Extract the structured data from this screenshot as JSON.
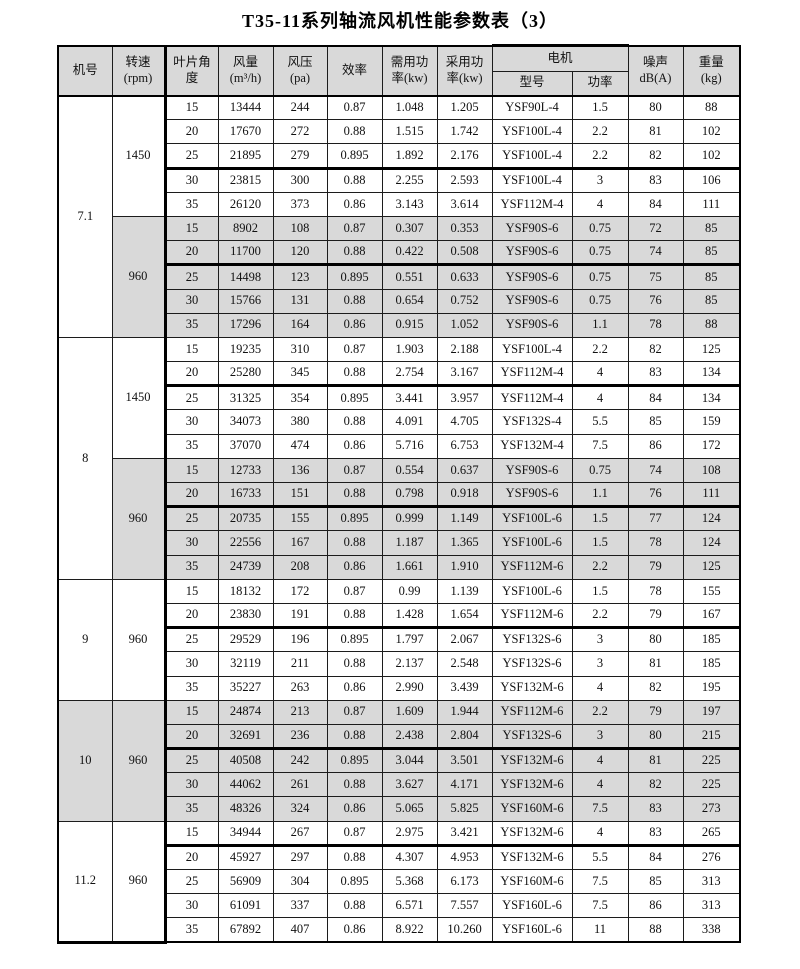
{
  "title": "T35-11系列轴流风机性能参数表（3）",
  "colors": {
    "shaded_bg": "#d9d9d9",
    "header_bg": "#d9d9d9",
    "border": "#000000",
    "page_bg": "#ffffff"
  },
  "table": {
    "headers": {
      "jihao": "机号",
      "speed": "转速\n(rpm)",
      "angle": "叶片角\n度",
      "flow": "风量\n(m³/h)",
      "pressure": "风压\n(pa)",
      "efficiency": "效率",
      "required_power": "需用功\n率(kw)",
      "adopted_power": "采用功\n率(kw)",
      "motor": "电机",
      "motor_model": "型号",
      "motor_power": "功率",
      "noise": "噪声\ndB(A)",
      "weight": "重量\n(kg)"
    },
    "jihao_groups": [
      {
        "label": "7.1",
        "start": 1,
        "span": 10,
        "shaded": false
      },
      {
        "label": "8",
        "start": 11,
        "span": 10,
        "shaded": false
      },
      {
        "label": "9",
        "start": 21,
        "span": 5,
        "shaded": false
      },
      {
        "label": "10",
        "start": 26,
        "span": 5,
        "shaded": true
      },
      {
        "label": "11.2",
        "start": 31,
        "span": 5,
        "shaded": false
      }
    ],
    "speed_groups": [
      {
        "label": "1450",
        "start": 1,
        "span": 5,
        "shaded": false
      },
      {
        "label": "960",
        "start": 6,
        "span": 5,
        "shaded": true
      },
      {
        "label": "1450",
        "start": 11,
        "span": 5,
        "shaded": false
      },
      {
        "label": "960",
        "start": 16,
        "span": 5,
        "shaded": true
      },
      {
        "label": "960",
        "start": 21,
        "span": 5,
        "shaded": false
      },
      {
        "label": "960",
        "start": 26,
        "span": 5,
        "shaded": true
      },
      {
        "label": "960",
        "start": 31,
        "span": 5,
        "shaded": false
      }
    ],
    "rows": [
      {
        "cells": [
          "15",
          "13444",
          "244",
          "0.87",
          "1.048",
          "1.205",
          "YSF90L-4",
          "1.5",
          "80",
          "88"
        ],
        "shaded": false,
        "thick_bottom": false
      },
      {
        "cells": [
          "20",
          "17670",
          "272",
          "0.88",
          "1.515",
          "1.742",
          "YSF100L-4",
          "2.2",
          "81",
          "102"
        ],
        "shaded": false,
        "thick_bottom": false
      },
      {
        "cells": [
          "25",
          "21895",
          "279",
          "0.895",
          "1.892",
          "2.176",
          "YSF100L-4",
          "2.2",
          "82",
          "102"
        ],
        "shaded": false,
        "thick_bottom": true
      },
      {
        "cells": [
          "30",
          "23815",
          "300",
          "0.88",
          "2.255",
          "2.593",
          "YSF100L-4",
          "3",
          "83",
          "106"
        ],
        "shaded": false,
        "thick_bottom": false
      },
      {
        "cells": [
          "35",
          "26120",
          "373",
          "0.86",
          "3.143",
          "3.614",
          "YSF112M-4",
          "4",
          "84",
          "111"
        ],
        "shaded": false,
        "thick_bottom": false
      },
      {
        "cells": [
          "15",
          "8902",
          "108",
          "0.87",
          "0.307",
          "0.353",
          "YSF90S-6",
          "0.75",
          "72",
          "85"
        ],
        "shaded": true,
        "thick_bottom": false
      },
      {
        "cells": [
          "20",
          "11700",
          "120",
          "0.88",
          "0.422",
          "0.508",
          "YSF90S-6",
          "0.75",
          "74",
          "85"
        ],
        "shaded": true,
        "thick_bottom": true
      },
      {
        "cells": [
          "25",
          "14498",
          "123",
          "0.895",
          "0.551",
          "0.633",
          "YSF90S-6",
          "0.75",
          "75",
          "85"
        ],
        "shaded": true,
        "thick_bottom": false
      },
      {
        "cells": [
          "30",
          "15766",
          "131",
          "0.88",
          "0.654",
          "0.752",
          "YSF90S-6",
          "0.75",
          "76",
          "85"
        ],
        "shaded": true,
        "thick_bottom": false
      },
      {
        "cells": [
          "35",
          "17296",
          "164",
          "0.86",
          "0.915",
          "1.052",
          "YSF90S-6",
          "1.1",
          "78",
          "88"
        ],
        "shaded": true,
        "thick_bottom": false
      },
      {
        "cells": [
          "15",
          "19235",
          "310",
          "0.87",
          "1.903",
          "2.188",
          "YSF100L-4",
          "2.2",
          "82",
          "125"
        ],
        "shaded": false,
        "thick_bottom": false
      },
      {
        "cells": [
          "20",
          "25280",
          "345",
          "0.88",
          "2.754",
          "3.167",
          "YSF112M-4",
          "4",
          "83",
          "134"
        ],
        "shaded": false,
        "thick_bottom": true
      },
      {
        "cells": [
          "25",
          "31325",
          "354",
          "0.895",
          "3.441",
          "3.957",
          "YSF112M-4",
          "4",
          "84",
          "134"
        ],
        "shaded": false,
        "thick_bottom": false
      },
      {
        "cells": [
          "30",
          "34073",
          "380",
          "0.88",
          "4.091",
          "4.705",
          "YSF132S-4",
          "5.5",
          "85",
          "159"
        ],
        "shaded": false,
        "thick_bottom": false
      },
      {
        "cells": [
          "35",
          "37070",
          "474",
          "0.86",
          "5.716",
          "6.753",
          "YSF132M-4",
          "7.5",
          "86",
          "172"
        ],
        "shaded": false,
        "thick_bottom": false
      },
      {
        "cells": [
          "15",
          "12733",
          "136",
          "0.87",
          "0.554",
          "0.637",
          "YSF90S-6",
          "0.75",
          "74",
          "108"
        ],
        "shaded": true,
        "thick_bottom": false
      },
      {
        "cells": [
          "20",
          "16733",
          "151",
          "0.88",
          "0.798",
          "0.918",
          "YSF90S-6",
          "1.1",
          "76",
          "111"
        ],
        "shaded": true,
        "thick_bottom": true
      },
      {
        "cells": [
          "25",
          "20735",
          "155",
          "0.895",
          "0.999",
          "1.149",
          "YSF100L-6",
          "1.5",
          "77",
          "124"
        ],
        "shaded": true,
        "thick_bottom": false
      },
      {
        "cells": [
          "30",
          "22556",
          "167",
          "0.88",
          "1.187",
          "1.365",
          "YSF100L-6",
          "1.5",
          "78",
          "124"
        ],
        "shaded": true,
        "thick_bottom": false
      },
      {
        "cells": [
          "35",
          "24739",
          "208",
          "0.86",
          "1.661",
          "1.910",
          "YSF112M-6",
          "2.2",
          "79",
          "125"
        ],
        "shaded": true,
        "thick_bottom": false
      },
      {
        "cells": [
          "15",
          "18132",
          "172",
          "0.87",
          "0.99",
          "1.139",
          "YSF100L-6",
          "1.5",
          "78",
          "155"
        ],
        "shaded": false,
        "thick_bottom": false
      },
      {
        "cells": [
          "20",
          "23830",
          "191",
          "0.88",
          "1.428",
          "1.654",
          "YSF112M-6",
          "2.2",
          "79",
          "167"
        ],
        "shaded": false,
        "thick_bottom": true
      },
      {
        "cells": [
          "25",
          "29529",
          "196",
          "0.895",
          "1.797",
          "2.067",
          "YSF132S-6",
          "3",
          "80",
          "185"
        ],
        "shaded": false,
        "thick_bottom": false
      },
      {
        "cells": [
          "30",
          "32119",
          "211",
          "0.88",
          "2.137",
          "2.548",
          "YSF132S-6",
          "3",
          "81",
          "185"
        ],
        "shaded": false,
        "thick_bottom": false
      },
      {
        "cells": [
          "35",
          "35227",
          "263",
          "0.86",
          "2.990",
          "3.439",
          "YSF132M-6",
          "4",
          "82",
          "195"
        ],
        "shaded": false,
        "thick_bottom": false
      },
      {
        "cells": [
          "15",
          "24874",
          "213",
          "0.87",
          "1.609",
          "1.944",
          "YSF112M-6",
          "2.2",
          "79",
          "197"
        ],
        "shaded": true,
        "thick_bottom": false
      },
      {
        "cells": [
          "20",
          "32691",
          "236",
          "0.88",
          "2.438",
          "2.804",
          "YSF132S-6",
          "3",
          "80",
          "215"
        ],
        "shaded": true,
        "thick_bottom": true
      },
      {
        "cells": [
          "25",
          "40508",
          "242",
          "0.895",
          "3.044",
          "3.501",
          "YSF132M-6",
          "4",
          "81",
          "225"
        ],
        "shaded": true,
        "thick_bottom": false
      },
      {
        "cells": [
          "30",
          "44062",
          "261",
          "0.88",
          "3.627",
          "4.171",
          "YSF132M-6",
          "4",
          "82",
          "225"
        ],
        "shaded": true,
        "thick_bottom": false
      },
      {
        "cells": [
          "35",
          "48326",
          "324",
          "0.86",
          "5.065",
          "5.825",
          "YSF160M-6",
          "7.5",
          "83",
          "273"
        ],
        "shaded": true,
        "thick_bottom": false
      },
      {
        "cells": [
          "15",
          "34944",
          "267",
          "0.87",
          "2.975",
          "3.421",
          "YSF132M-6",
          "4",
          "83",
          "265"
        ],
        "shaded": false,
        "thick_bottom": true
      },
      {
        "cells": [
          "20",
          "45927",
          "297",
          "0.88",
          "4.307",
          "4.953",
          "YSF132M-6",
          "5.5",
          "84",
          "276"
        ],
        "shaded": false,
        "thick_bottom": false
      },
      {
        "cells": [
          "25",
          "56909",
          "304",
          "0.895",
          "5.368",
          "6.173",
          "YSF160M-6",
          "7.5",
          "85",
          "313"
        ],
        "shaded": false,
        "thick_bottom": false
      },
      {
        "cells": [
          "30",
          "61091",
          "337",
          "0.88",
          "6.571",
          "7.557",
          "YSF160L-6",
          "7.5",
          "86",
          "313"
        ],
        "shaded": false,
        "thick_bottom": false
      },
      {
        "cells": [
          "35",
          "67892",
          "407",
          "0.86",
          "8.922",
          "10.260",
          "YSF160L-6",
          "11",
          "88",
          "338"
        ],
        "shaded": false,
        "thick_bottom": false
      }
    ]
  }
}
